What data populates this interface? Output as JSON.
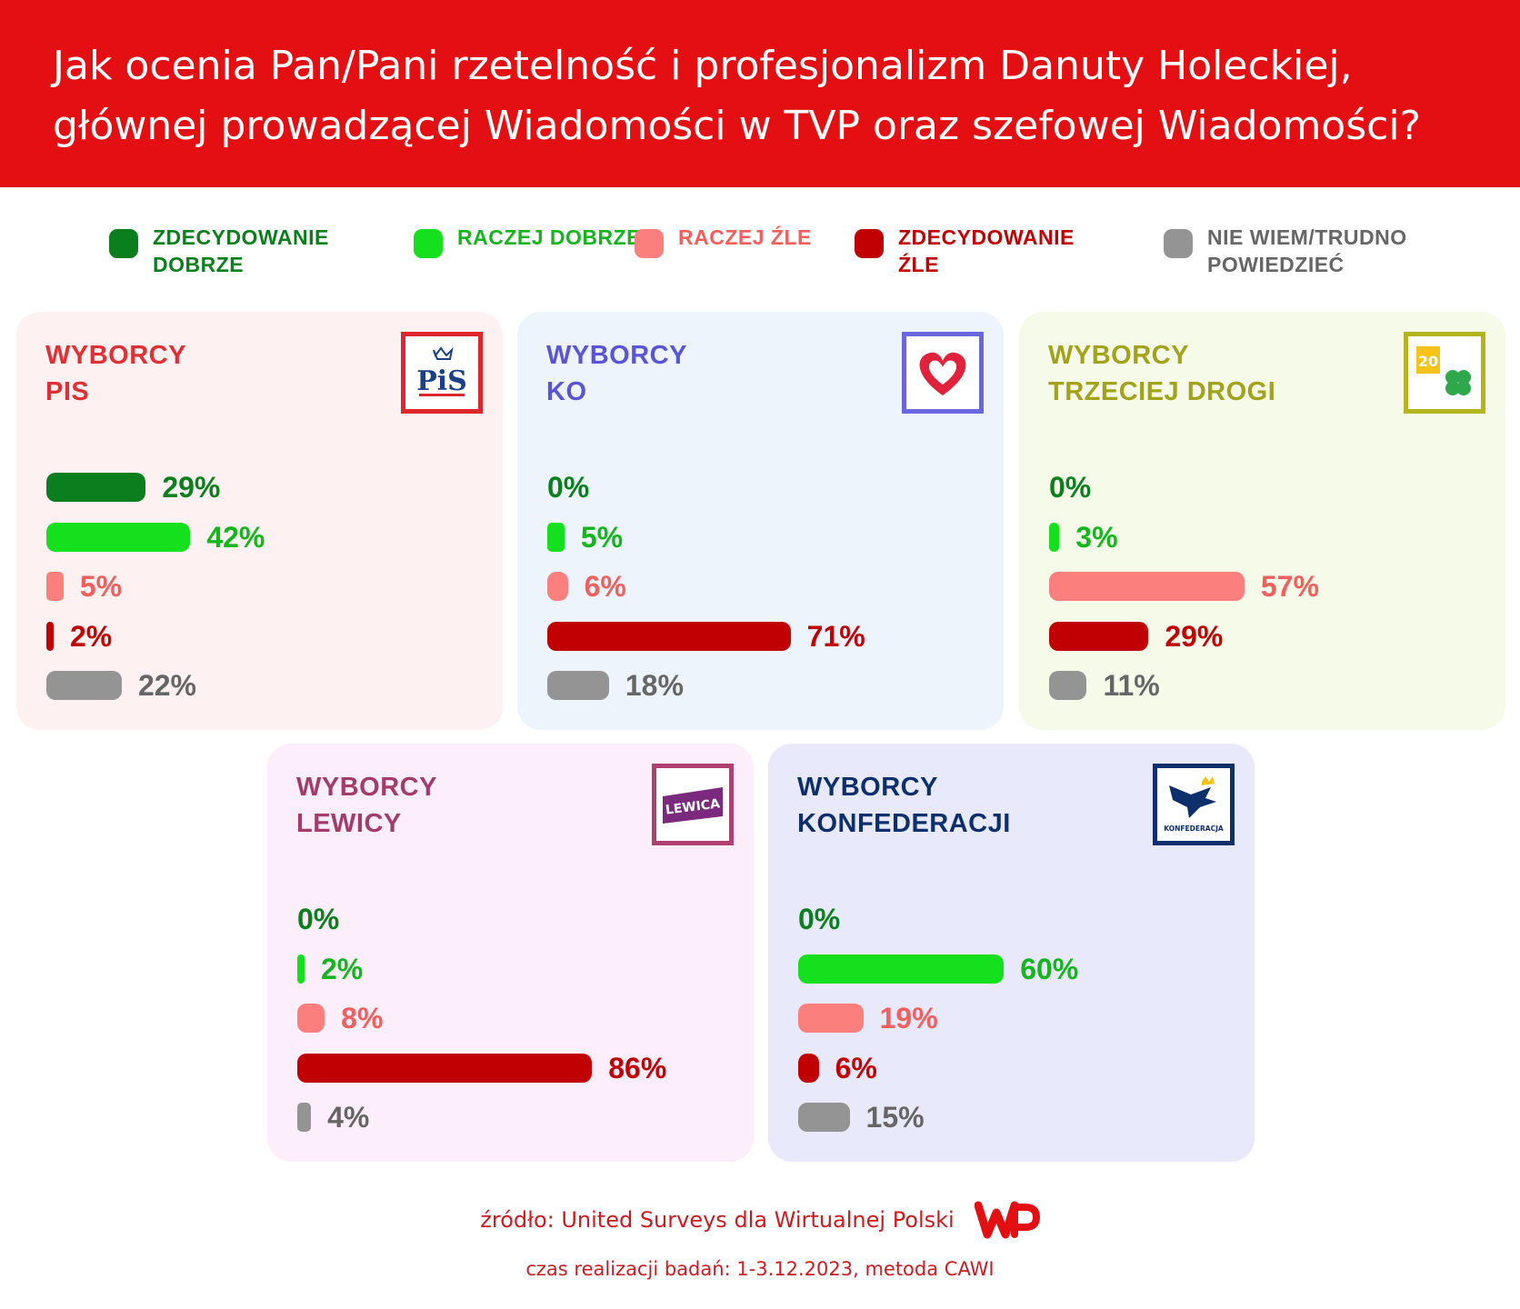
{
  "title": "Jak ocenia Pan/Pani rzetelność i profesjonalizm Danuty Holeckiej, głównej prowadzącej Wiadomości w TVP oraz szefowej Wiadomości?",
  "legend": [
    {
      "label": "ZDECYDOWANIE DOBRZE",
      "color": "#0b7f1d",
      "text_color": "#0b7f1d"
    },
    {
      "label": "RACZEJ DOBRZE",
      "color": "#14e01e",
      "text_color": "#15b51d"
    },
    {
      "label": "RACZEJ ŹLE",
      "color": "#fb7f7c",
      "text_color": "#f35f5c"
    },
    {
      "label": "ZDECYDOWANIE ŹLE",
      "color": "#c00003",
      "text_color": "#c00003"
    },
    {
      "label": "NIE WIEM/TRUDNO POWIEDZIEĆ",
      "color": "#949494",
      "text_color": "#666666"
    }
  ],
  "value_colors": [
    "#0b7f1d",
    "#15b51d",
    "#f35f5c",
    "#c00003",
    "#666666"
  ],
  "chart_data": [
    {
      "type": "bar",
      "title_line1": "WYBORCY",
      "title_line2": "PIS",
      "title_color": "#df3035",
      "bg": "#fdf1f1",
      "logo": {
        "name": "pis-logo",
        "text": "PiS",
        "color": "#e0262d"
      },
      "categories": [
        "ZDECYDOWANIE DOBRZE",
        "RACZEJ DOBRZE",
        "RACZEJ ŹLE",
        "ZDECYDOWANIE ŹLE",
        "NIE WIEM/TRUDNO POWIEDZIEĆ"
      ],
      "values": [
        29,
        42,
        5,
        2,
        22
      ],
      "labels": [
        "29%",
        "42%",
        "5%",
        "2%",
        "22%"
      ],
      "unit": "%"
    },
    {
      "type": "bar",
      "title_line1": "WYBORCY",
      "title_line2": "KO",
      "title_color": "#5a54d6",
      "bg": "#edf4fc",
      "logo": {
        "name": "ko-logo",
        "text": "",
        "color": "#6a66e0"
      },
      "categories": [
        "ZDECYDOWANIE DOBRZE",
        "RACZEJ DOBRZE",
        "RACZEJ ŹLE",
        "ZDECYDOWANIE ŹLE",
        "NIE WIEM/TRUDNO POWIEDZIEĆ"
      ],
      "values": [
        0,
        5,
        6,
        71,
        18
      ],
      "labels": [
        "0%",
        "5%",
        "6%",
        "71%",
        "18%"
      ],
      "unit": "%"
    },
    {
      "type": "bar",
      "title_line1": "WYBORCY",
      "title_line2": "TRZECIEJ DROGI",
      "title_color": "#a0a31b",
      "bg": "#f5fbe8",
      "logo": {
        "name": "trzecia-droga-logo",
        "text": "",
        "color": "#b3b51f"
      },
      "categories": [
        "ZDECYDOWANIE DOBRZE",
        "RACZEJ DOBRZE",
        "RACZEJ ŹLE",
        "ZDECYDOWANIE ŹLE",
        "NIE WIEM/TRUDNO POWIEDZIEĆ"
      ],
      "values": [
        0,
        3,
        57,
        29,
        11
      ],
      "labels": [
        "0%",
        "3%",
        "57%",
        "29%",
        "11%"
      ],
      "unit": "%"
    },
    {
      "type": "bar",
      "title_line1": "WYBORCY",
      "title_line2": "LEWICY",
      "title_color": "#a23c6a",
      "bg": "#fdeefb",
      "logo": {
        "name": "lewica-logo",
        "text": "LEWICA",
        "color": "#b0406f"
      },
      "categories": [
        "ZDECYDOWANIE DOBRZE",
        "RACZEJ DOBRZE",
        "RACZEJ ŹLE",
        "ZDECYDOWANIE ŹLE",
        "NIE WIEM/TRUDNO POWIEDZIEĆ"
      ],
      "values": [
        0,
        2,
        8,
        86,
        4
      ],
      "labels": [
        "0%",
        "2%",
        "8%",
        "86%",
        "4%"
      ],
      "unit": "%"
    },
    {
      "type": "bar",
      "title_line1": "WYBORCY",
      "title_line2": "KONFEDERACJI",
      "title_color": "#0d2f6c",
      "bg": "#e8eafb",
      "logo": {
        "name": "konfederacja-logo",
        "text": "KONFEDERACJA",
        "color": "#0d2f6c"
      },
      "categories": [
        "ZDECYDOWANIE DOBRZE",
        "RACZEJ DOBRZE",
        "RACZEJ ŹLE",
        "ZDECYDOWANIE ŹLE",
        "NIE WIEM/TRUDNO POWIEDZIEĆ"
      ],
      "values": [
        0,
        60,
        19,
        6,
        15
      ],
      "labels": [
        "0%",
        "60%",
        "19%",
        "6%",
        "15%"
      ],
      "unit": "%"
    }
  ],
  "footer": {
    "source": "źródło: United Surveys dla Wirtualnej Polski",
    "date": "czas realizacji badań: 1-3.12.2023, metoda CAWI",
    "brand_color": "#e30f13"
  }
}
